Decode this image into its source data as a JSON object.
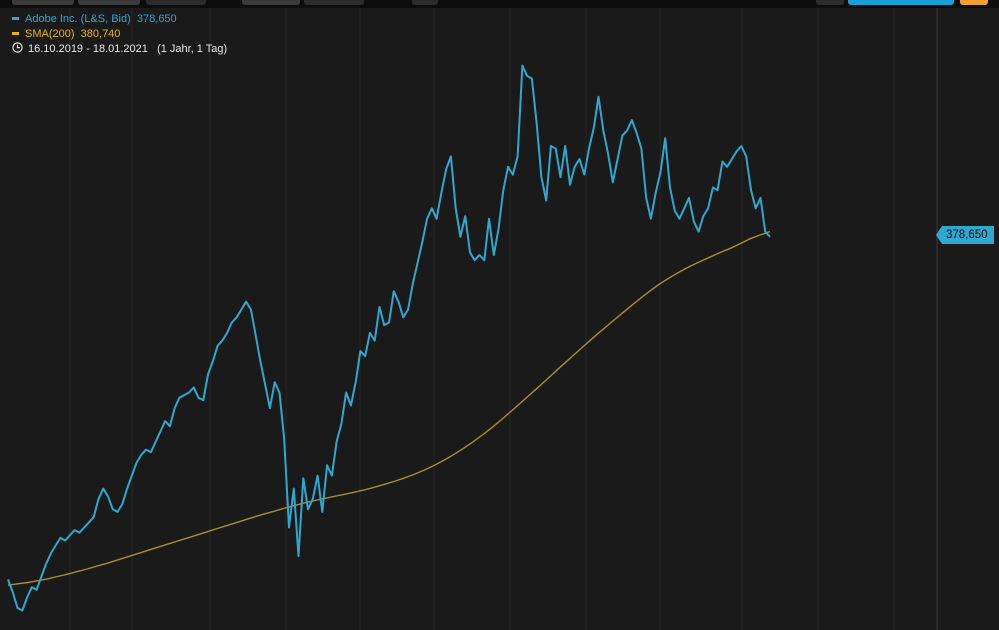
{
  "legend": {
    "series_name": "Adobe Inc. (L&S, Bid)",
    "series_value": "378,650",
    "sma_name": "SMA(200)",
    "sma_value": "380,740",
    "range": "16.10.2019 - 18.01.2021",
    "period": "(1 Jahr, 1 Tag)"
  },
  "price_tag": "378,650",
  "colors": {
    "price": "#2fa8d0",
    "sma": "#a88e2c",
    "sma_legend": "#e5b416",
    "background": "#1b1a1a",
    "grid": "#2a2a2a",
    "accent": "#1aa0d6",
    "orange": "#f0a030"
  },
  "chart_data": {
    "type": "line",
    "y_ticks": [
      "250,000",
      "275,000",
      "300,000",
      "325,000",
      "350,000",
      "375,000",
      "400,000",
      "425,000",
      "450,000"
    ],
    "ylim": [
      228000,
      470000
    ],
    "x_range": [
      "16.10.2019",
      "18.01.2021"
    ],
    "grid": true,
    "series": [
      {
        "name": "Adobe Inc. (L&S, Bid)",
        "values": [
          246,
          241,
          235,
          234,
          239,
          243,
          242,
          247,
          252,
          256,
          259,
          262,
          261,
          263,
          265,
          264,
          266,
          268,
          270,
          277,
          281,
          278,
          273,
          272,
          275,
          281,
          286,
          291,
          294,
          296,
          295,
          299,
          303,
          307,
          305,
          312,
          316,
          317,
          318,
          320,
          316,
          315,
          325,
          330,
          336,
          338,
          341,
          345,
          347,
          350,
          353,
          350,
          340,
          330,
          321,
          312,
          322,
          318,
          300,
          266,
          281,
          255,
          285,
          273,
          277,
          286,
          272,
          290,
          286,
          299,
          306,
          318,
          313,
          322,
          334,
          332,
          341,
          338,
          351,
          344,
          345,
          357,
          353,
          347,
          350,
          360,
          368,
          376,
          385,
          389,
          385,
          395,
          404,
          409,
          389,
          378,
          386,
          372,
          369,
          371,
          369,
          385,
          371,
          381,
          396,
          405,
          402,
          409,
          444,
          440,
          439,
          422,
          401,
          392,
          413,
          412,
          401,
          413,
          398,
          405,
          408,
          402,
          412,
          420,
          432,
          419,
          410,
          399,
          408,
          417,
          419,
          423,
          418,
          412,
          393,
          385,
          395,
          403,
          416,
          397,
          388,
          385,
          389,
          393,
          384,
          380,
          386,
          389,
          397,
          396,
          407,
          405,
          408,
          411,
          413,
          409,
          396,
          389,
          393,
          380,
          378
        ]
      },
      {
        "name": "SMA(200)",
        "values": [
          243.8,
          244.3,
          244.8,
          245.5,
          246.2,
          247.1,
          248.0,
          249.0,
          250.0,
          251.1,
          252.2,
          253.4,
          254.6,
          255.8,
          257.0,
          258.2,
          259.4,
          260.6,
          261.8,
          263.0,
          264.2,
          265.4,
          266.6,
          267.8,
          269.0,
          270.2,
          271.3,
          272.4,
          273.5,
          274.5,
          275.5,
          276.4,
          277.2,
          278.0,
          278.8,
          279.6,
          280.5,
          281.5,
          282.6,
          283.7,
          285.0,
          286.4,
          288.0,
          289.8,
          291.8,
          294.0,
          296.4,
          299.0,
          301.8,
          304.8,
          308.0,
          311.3,
          314.7,
          318.1,
          321.5,
          325.0,
          328.5,
          331.9,
          335.3,
          338.7,
          342.0,
          345.2,
          348.4,
          351.5,
          354.6,
          357.5,
          360.2,
          362.6,
          364.8,
          366.8,
          368.6,
          370.3,
          372.0,
          373.6,
          375.4,
          377.3,
          378.7,
          380.0
        ]
      }
    ]
  }
}
